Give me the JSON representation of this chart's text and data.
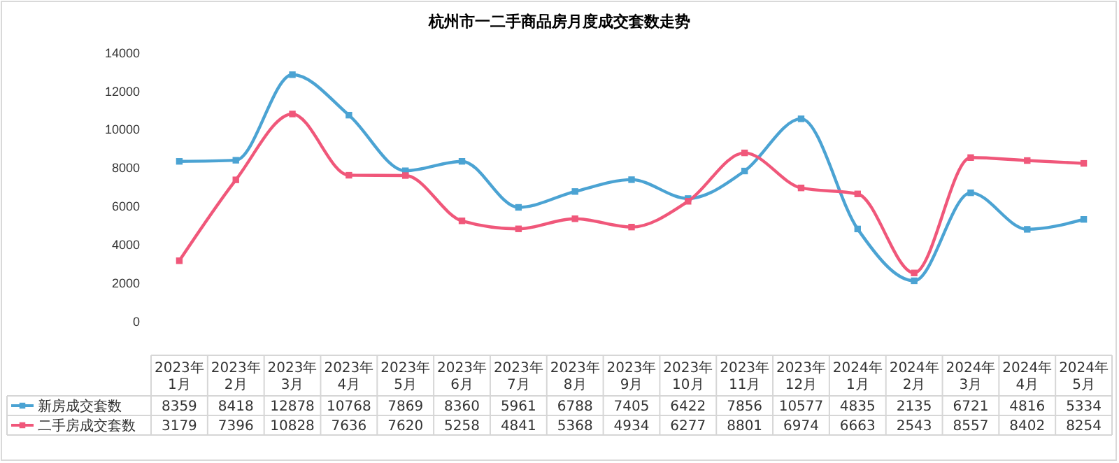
{
  "chart_data": {
    "type": "line",
    "title": "杭州市一二手商品房月度成交套数走势",
    "categories": [
      "2023年1月",
      "2023年2月",
      "2023年3月",
      "2023年4月",
      "2023年5月",
      "2023年6月",
      "2023年7月",
      "2023年8月",
      "2023年9月",
      "2023年10月",
      "2023年11月",
      "2023年12月",
      "2024年1月",
      "2024年2月",
      "2024年3月",
      "2024年4月",
      "2024年5月"
    ],
    "series": [
      {
        "name": "新房成交套数",
        "color": "#4ba3d3",
        "values": [
          8359,
          8418,
          12878,
          10768,
          7869,
          8360,
          5961,
          6788,
          7405,
          6422,
          7856,
          10577,
          4835,
          2135,
          6721,
          4816,
          5334
        ]
      },
      {
        "name": "二手房成交套数",
        "color": "#f0577a",
        "values": [
          3179,
          7396,
          10828,
          7636,
          7620,
          5258,
          4841,
          5368,
          4934,
          6277,
          8801,
          6974,
          6663,
          2543,
          8557,
          8402,
          8254
        ]
      }
    ],
    "ylim": [
      0,
      14000
    ],
    "yticks": [
      0,
      2000,
      4000,
      6000,
      8000,
      10000,
      12000,
      14000
    ],
    "data_labels": true,
    "legend": "bottom",
    "marker": "square",
    "line_style": "solid",
    "grid": false
  }
}
